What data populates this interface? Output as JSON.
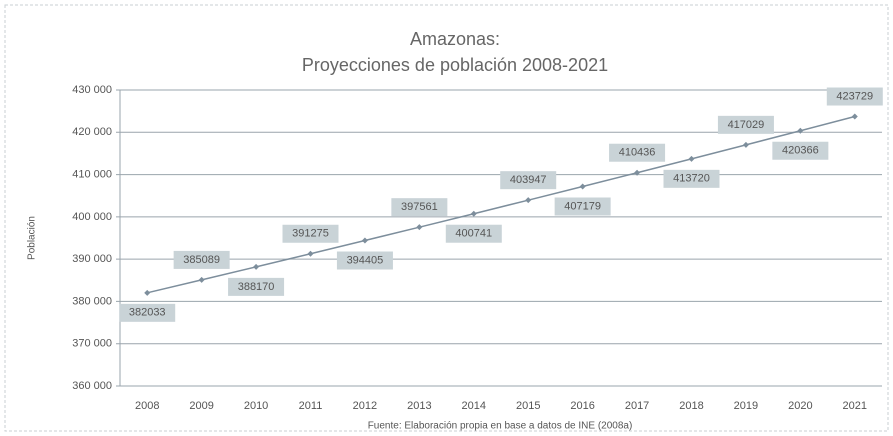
{
  "chart_data": {
    "type": "line",
    "title": "Amazonas:",
    "subtitle": "Proyecciones de población 2008-2021",
    "y_label": "Población",
    "note": "Fuente: Elaboración propia en base a datos de INE (2008a)",
    "categories": [
      "2008",
      "2009",
      "2010",
      "2011",
      "2012",
      "2013",
      "2014",
      "2015",
      "2016",
      "2017",
      "2018",
      "2019",
      "2020",
      "2021"
    ],
    "series": [
      {
        "color": "#7d8e9c",
        "values": [
          382033,
          385089,
          388170,
          391275,
          394405,
          397561,
          400741,
          403947,
          407179,
          410436,
          413720,
          417029,
          420366,
          423729
        ]
      }
    ],
    "ylim": [
      360000,
      430000
    ],
    "yticks": [
      {
        "value": 360000,
        "label": "360 000"
      },
      {
        "value": 370000,
        "label": "370 000"
      },
      {
        "value": 380000,
        "label": "380 000"
      },
      {
        "value": 390000,
        "label": "390 000"
      },
      {
        "value": 400000,
        "label": "400 000"
      },
      {
        "value": 410000,
        "label": "410 000"
      },
      {
        "value": 420000,
        "label": "420 000"
      },
      {
        "value": 430000,
        "label": "430 000"
      }
    ],
    "grid": true
  }
}
